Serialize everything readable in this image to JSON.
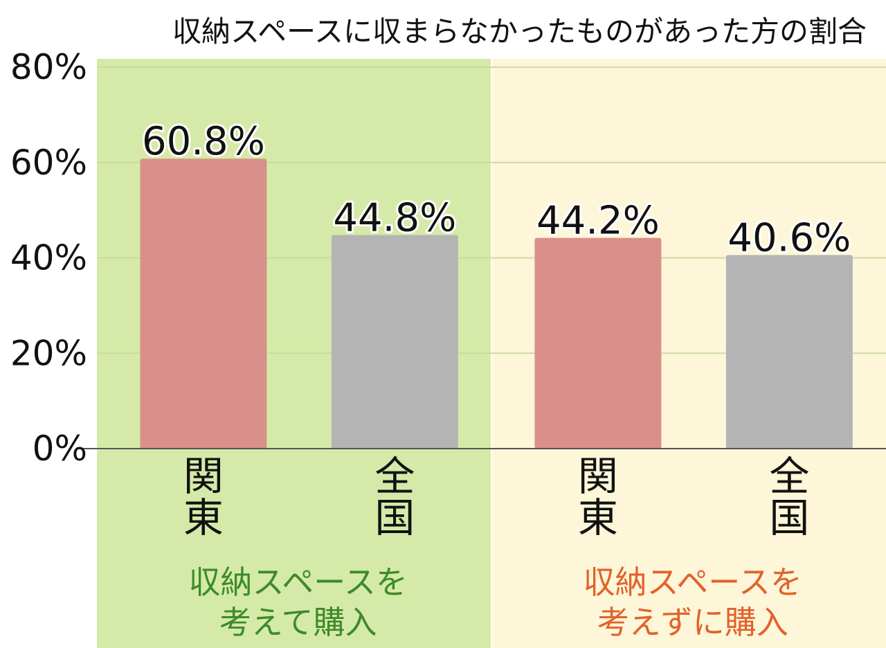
{
  "chart_data": {
    "type": "bar",
    "title": "収納スペースに収まらなかったものがあった方の割合",
    "xlabel": "",
    "ylabel": "",
    "ylim": [
      0,
      80
    ],
    "y_ticks": [
      0,
      20,
      40,
      60,
      80
    ],
    "tick_suffix": "%",
    "grid": true,
    "bars": [
      {
        "category": "関東",
        "group": 0,
        "value": 60.8,
        "label": "60.8%",
        "color": "#d9908a"
      },
      {
        "category": "全国",
        "group": 0,
        "value": 44.8,
        "label": "44.8%",
        "color": "#b4b4b4"
      },
      {
        "category": "関東",
        "group": 1,
        "value": 44.2,
        "label": "44.2%",
        "color": "#d9908a"
      },
      {
        "category": "全国",
        "group": 1,
        "value": 40.6,
        "label": "40.6%",
        "color": "#b4b4b4"
      }
    ],
    "groups": [
      {
        "lines": [
          "収納スペースを",
          "考えて購入"
        ],
        "background": "#d5eaa8",
        "text_color": "#3d8a2a"
      },
      {
        "lines": [
          "収納スペースを",
          "考えずに購入"
        ],
        "background": "#fdf6d8",
        "text_color": "#e2622b"
      }
    ]
  }
}
